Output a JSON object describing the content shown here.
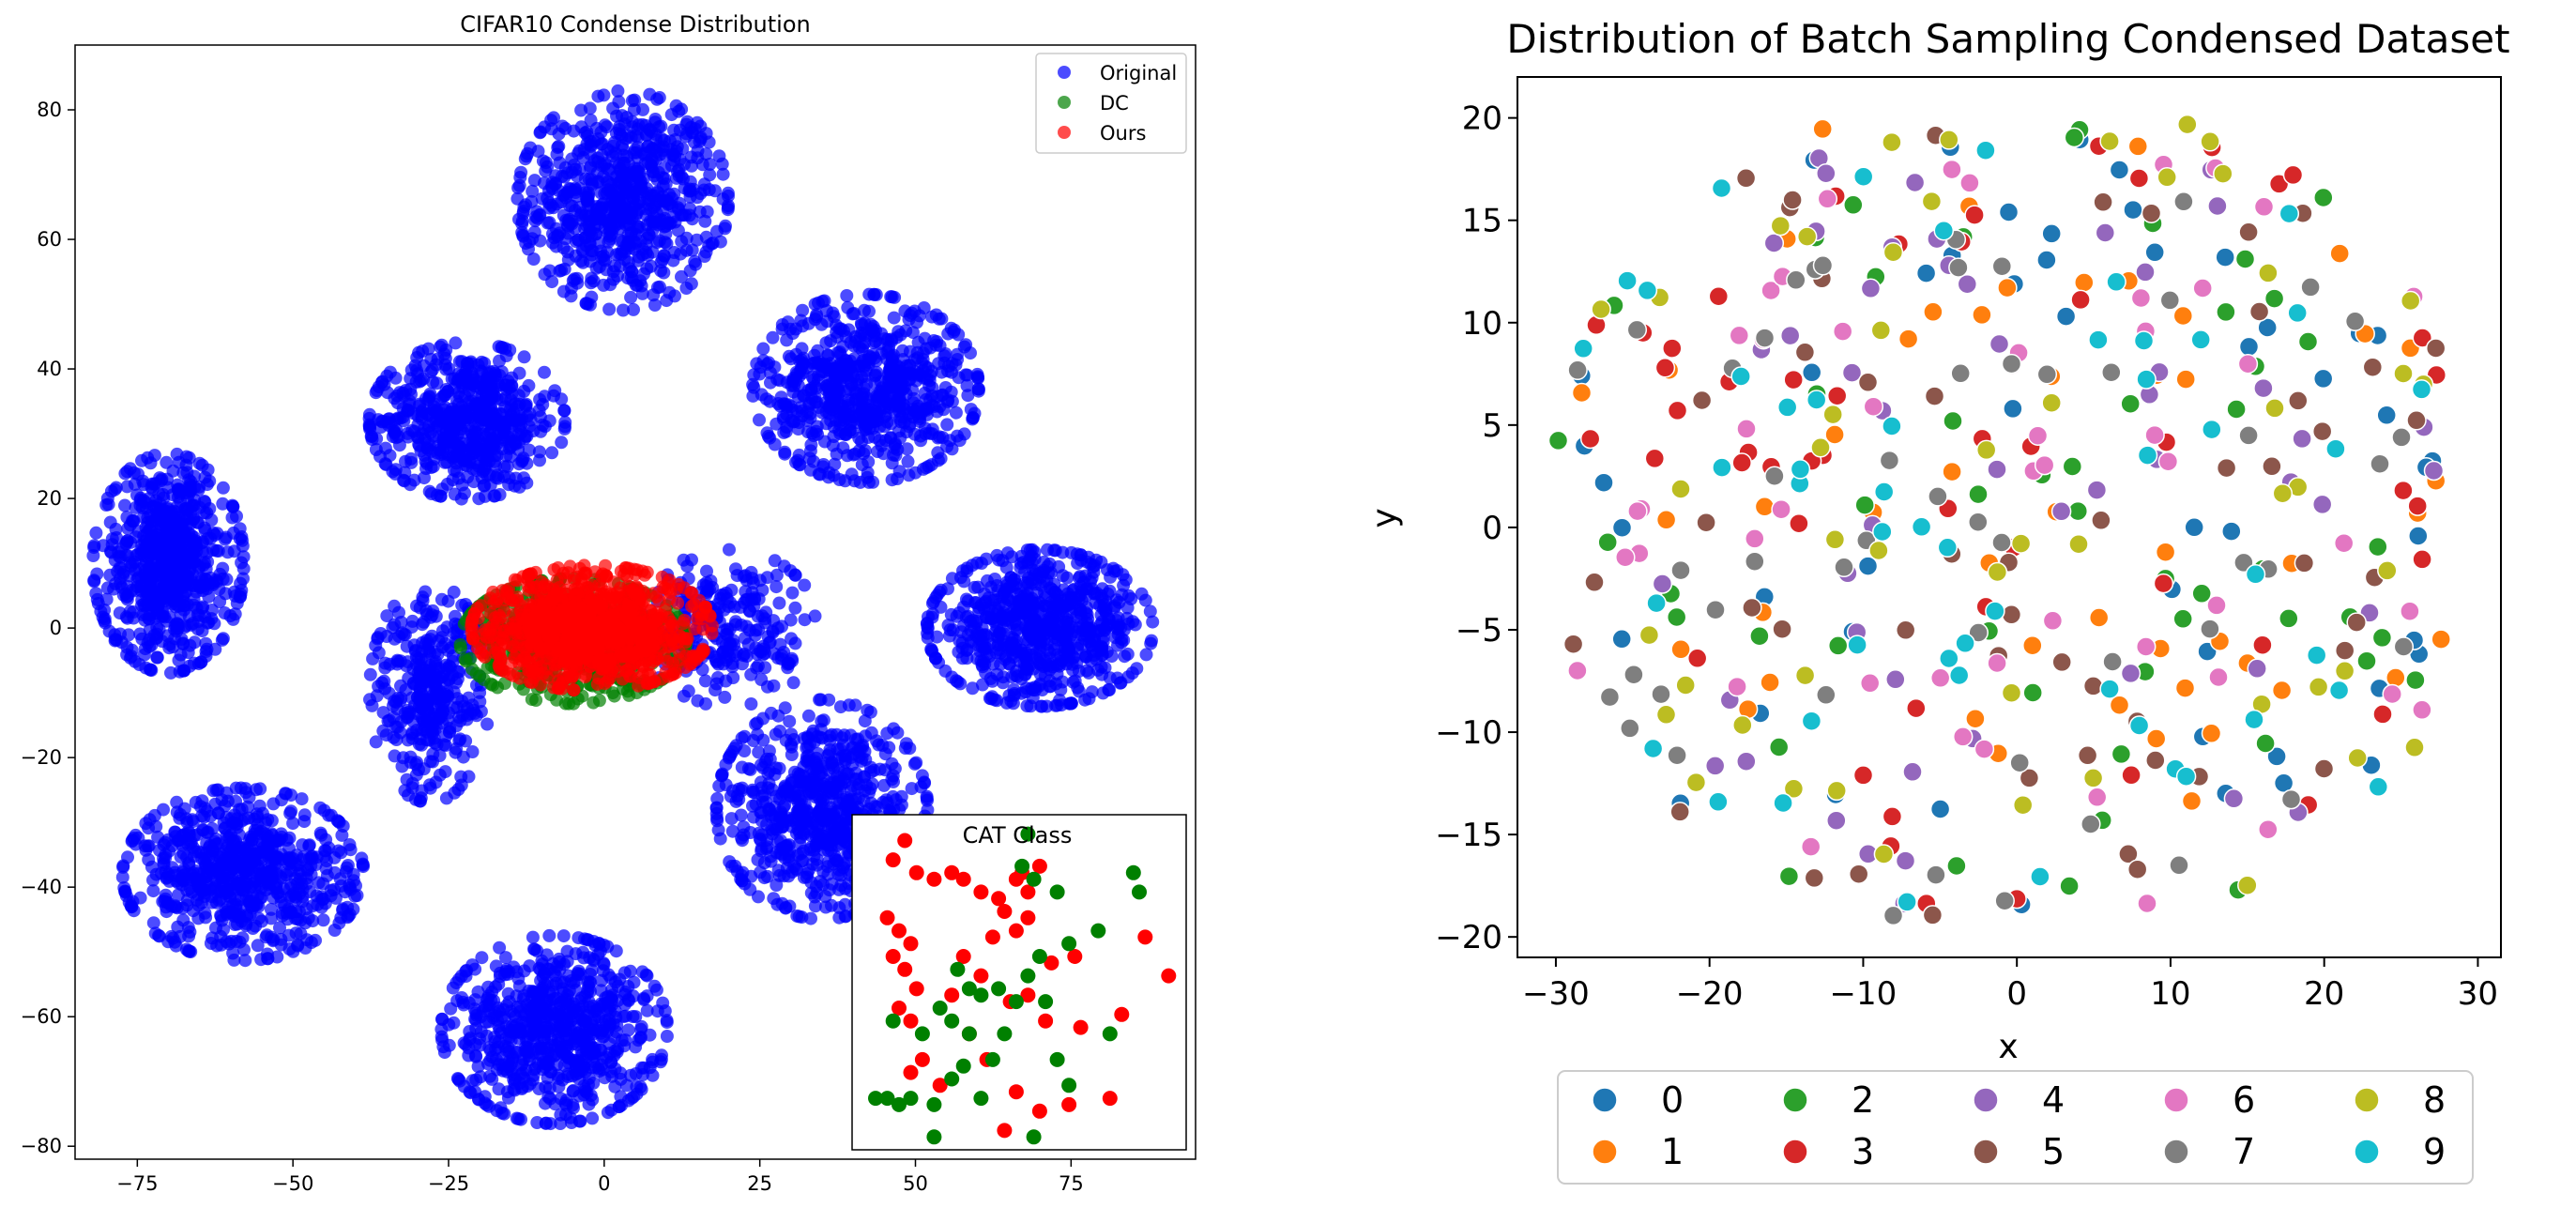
{
  "chart_data": [
    {
      "type": "scatter",
      "title": "CIFAR10 Condense Distribution",
      "xlabel": "",
      "ylabel": "",
      "xlim": [
        -85,
        95
      ],
      "ylim": [
        -82,
        90
      ],
      "xticks": [
        -75,
        -50,
        -25,
        0,
        25,
        50,
        75
      ],
      "yticks": [
        -80,
        -60,
        -40,
        -20,
        0,
        20,
        40,
        60,
        80
      ],
      "legend_position": "top-right",
      "grid": false,
      "series": [
        {
          "name": "Original",
          "color": "#0000ff"
        },
        {
          "name": "DC",
          "color": "#008000"
        },
        {
          "name": "Ours",
          "color": "#ff0000"
        }
      ],
      "clusters_original": [
        {
          "cx": 3,
          "cy": 66,
          "sx": 14,
          "sy": 14,
          "n": 700
        },
        {
          "cx": -22,
          "cy": 32,
          "sx": 13,
          "sy": 10,
          "n": 600
        },
        {
          "cx": 42,
          "cy": 37,
          "sx": 15,
          "sy": 12,
          "n": 700
        },
        {
          "cx": -70,
          "cy": 10,
          "sx": 10,
          "sy": 14,
          "n": 700
        },
        {
          "cx": 70,
          "cy": 0,
          "sx": 15,
          "sy": 10,
          "n": 700
        },
        {
          "cx": -58,
          "cy": -38,
          "sx": 16,
          "sy": 11,
          "n": 700
        },
        {
          "cx": -8,
          "cy": -62,
          "sx": 15,
          "sy": 12,
          "n": 700
        },
        {
          "cx": 35,
          "cy": -28,
          "sx": 14,
          "sy": 14,
          "n": 700
        },
        {
          "cx": -28,
          "cy": -10,
          "sx": 8,
          "sy": 14,
          "n": 350
        },
        {
          "cx": 20,
          "cy": 0,
          "sx": 12,
          "sy": 10,
          "n": 250
        }
      ],
      "cluster_dc": {
        "cx": -5,
        "cy": -2,
        "sx": 15,
        "sy": 8,
        "n": 600
      },
      "cluster_ours": {
        "cx": -2,
        "cy": 0,
        "sx": 16,
        "sy": 8,
        "n": 900
      },
      "inset": {
        "title": "CAT Class",
        "xlim": [
          38,
          95
        ],
        "ylim": [
          -80,
          -28
        ],
        "ours_points": [
          [
            45,
            -35
          ],
          [
            47,
            -32
          ],
          [
            49,
            -37
          ],
          [
            52,
            -38
          ],
          [
            55,
            -37
          ],
          [
            57,
            -38
          ],
          [
            60,
            -40
          ],
          [
            63,
            -41
          ],
          [
            66,
            -38
          ],
          [
            68,
            -40
          ],
          [
            67,
            -37
          ],
          [
            70,
            -36
          ],
          [
            44,
            -44
          ],
          [
            46,
            -46
          ],
          [
            48,
            -48
          ],
          [
            45,
            -50
          ],
          [
            47,
            -52
          ],
          [
            49,
            -55
          ],
          [
            46,
            -58
          ],
          [
            48,
            -60
          ],
          [
            55,
            -56
          ],
          [
            57,
            -50
          ],
          [
            60,
            -53
          ],
          [
            62,
            -47
          ],
          [
            64,
            -43
          ],
          [
            66,
            -46
          ],
          [
            68,
            -44
          ],
          [
            65,
            -57
          ],
          [
            68,
            -56
          ],
          [
            72,
            -51
          ],
          [
            76,
            -50
          ],
          [
            84,
            -59
          ],
          [
            88,
            -47
          ],
          [
            92,
            -53
          ],
          [
            50,
            -66
          ],
          [
            48,
            -68
          ],
          [
            58,
            -62
          ],
          [
            61,
            -66
          ],
          [
            66,
            -71
          ],
          [
            70,
            -74
          ],
          [
            75,
            -73
          ],
          [
            82,
            -72
          ],
          [
            64,
            -77
          ],
          [
            53,
            -70
          ],
          [
            71,
            -60
          ],
          [
            77,
            -61
          ]
        ],
        "dc_points": [
          [
            68,
            -31
          ],
          [
            67,
            -36
          ],
          [
            69,
            -38
          ],
          [
            73,
            -40
          ],
          [
            86,
            -37
          ],
          [
            87,
            -40
          ],
          [
            80,
            -46
          ],
          [
            75,
            -48
          ],
          [
            70,
            -50
          ],
          [
            68,
            -53
          ],
          [
            63,
            -55
          ],
          [
            58,
            -55
          ],
          [
            56,
            -52
          ],
          [
            53,
            -58
          ],
          [
            55,
            -60
          ],
          [
            50,
            -62
          ],
          [
            60,
            -56
          ],
          [
            66,
            -57
          ],
          [
            71,
            -57
          ],
          [
            62,
            -66
          ],
          [
            57,
            -67
          ],
          [
            55,
            -69
          ],
          [
            60,
            -72
          ],
          [
            52,
            -73
          ],
          [
            48,
            -72
          ],
          [
            42,
            -72
          ],
          [
            44,
            -72
          ],
          [
            46,
            -73
          ],
          [
            73,
            -66
          ],
          [
            75,
            -70
          ],
          [
            82,
            -62
          ],
          [
            69,
            -78
          ],
          [
            52,
            -78
          ],
          [
            45,
            -60
          ],
          [
            58,
            -62
          ],
          [
            64,
            -62
          ]
        ]
      }
    },
    {
      "type": "scatter",
      "title": "Distribution of Batch Sampling Condensed Dataset",
      "xlabel": "x",
      "ylabel": "y",
      "xlim": [
        -32.5,
        31.5
      ],
      "ylim": [
        -21,
        22
      ],
      "xticks": [
        -30,
        -20,
        -10,
        0,
        10,
        20,
        30
      ],
      "yticks": [
        -20,
        -15,
        -10,
        -5,
        0,
        5,
        10,
        15,
        20
      ],
      "yticklabels": [
        "−20",
        "−15",
        "−10",
        "−5",
        "0",
        "5",
        "10",
        "15",
        "20"
      ],
      "xticklabels": [
        "−30",
        "−20",
        "−10",
        "0",
        "10",
        "20",
        "30"
      ],
      "legend_position": "below",
      "grid": false,
      "classes": [
        {
          "name": "0",
          "color": "#1f77b4"
        },
        {
          "name": "1",
          "color": "#ff7f0e"
        },
        {
          "name": "2",
          "color": "#2ca02c"
        },
        {
          "name": "3",
          "color": "#d62728"
        },
        {
          "name": "4",
          "color": "#9467bd"
        },
        {
          "name": "5",
          "color": "#8c564b"
        },
        {
          "name": "6",
          "color": "#e377c2"
        },
        {
          "name": "7",
          "color": "#7f7f7f"
        },
        {
          "name": "8",
          "color": "#bcbd22"
        },
        {
          "name": "9",
          "color": "#17becf"
        }
      ],
      "points_per_class": 50,
      "region": {
        "xmin": -30,
        "xmax": 28,
        "ymin": -19,
        "ymax": 20
      }
    }
  ],
  "left": {
    "title": "CIFAR10 Condense Distribution",
    "inset_title": "CAT Class",
    "xticks": [
      "−75",
      "−50",
      "−25",
      "0",
      "25",
      "50",
      "75"
    ],
    "yticks": [
      "80",
      "60",
      "40",
      "20",
      "0",
      "−20",
      "−40",
      "−60",
      "−80"
    ],
    "legend": [
      "Original",
      "DC",
      "Ours"
    ]
  },
  "right": {
    "title": "Distribution of Batch Sampling Condensed Dataset",
    "xlabel": "x",
    "ylabel": "y",
    "legend": [
      "0",
      "1",
      "2",
      "3",
      "4",
      "5",
      "6",
      "7",
      "8",
      "9"
    ]
  }
}
